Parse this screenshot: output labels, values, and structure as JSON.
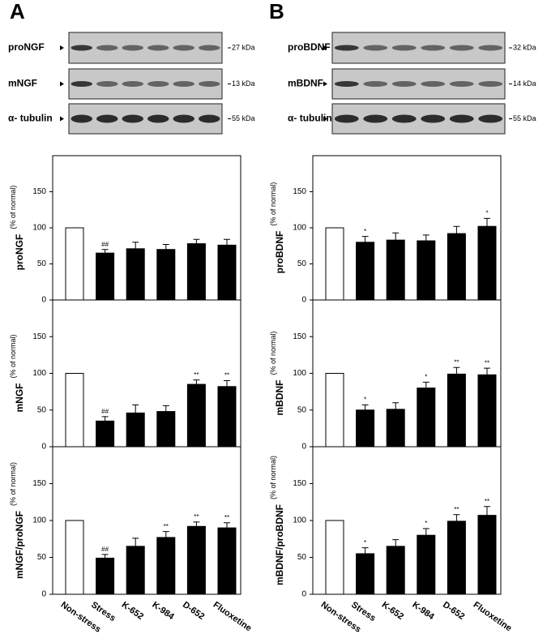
{
  "panels": [
    {
      "letter": "A",
      "blots": [
        {
          "label": "proNGF",
          "size": "27 kDa"
        },
        {
          "label": "mNGF",
          "size": "13 kDa"
        },
        {
          "label": "α- tubulin",
          "size": "55 kDa"
        }
      ]
    },
    {
      "letter": "B",
      "blots": [
        {
          "label": "proBDNF",
          "size": "32 kDa"
        },
        {
          "label": "mBDNF",
          "size": "14 kDa"
        },
        {
          "label": "α- tubulin",
          "size": "55 kDa"
        }
      ]
    }
  ],
  "chart_data": [
    {
      "type": "bar",
      "ylabel": "proNGF",
      "yunit": "(% of normal)",
      "values": [
        100,
        65,
        71,
        70,
        78,
        76
      ],
      "errors": [
        0,
        5,
        9,
        7,
        6,
        8
      ],
      "annotations": [
        null,
        "##",
        null,
        null,
        null,
        null
      ],
      "colors": [
        "#ffffff",
        "#000000",
        "#000000",
        "#000000",
        "#000000",
        "#000000"
      ],
      "ylim": [
        0,
        200
      ],
      "yticks": [
        0,
        50,
        100,
        150
      ]
    },
    {
      "type": "bar",
      "ylabel": "mNGF",
      "yunit": "(% of normal)",
      "values": [
        100,
        35,
        46,
        48,
        85,
        82
      ],
      "errors": [
        0,
        6,
        11,
        8,
        6,
        8
      ],
      "annotations": [
        null,
        "##",
        null,
        null,
        "**",
        "**"
      ],
      "colors": [
        "#ffffff",
        "#000000",
        "#000000",
        "#000000",
        "#000000",
        "#000000"
      ],
      "ylim": [
        0,
        200
      ],
      "yticks": [
        0,
        50,
        100,
        150
      ]
    },
    {
      "type": "bar",
      "ylabel": "mNGF/proNGF",
      "yunit": "(% of normal)",
      "categories": [
        "Non-stress",
        "Stress",
        "K-652",
        "K-984",
        "D-652",
        "Fluoxetine"
      ],
      "values": [
        100,
        49,
        65,
        77,
        92,
        90
      ],
      "errors": [
        0,
        5,
        11,
        8,
        6,
        7
      ],
      "annotations": [
        null,
        "##",
        null,
        "**",
        "**",
        "**"
      ],
      "colors": [
        "#ffffff",
        "#000000",
        "#000000",
        "#000000",
        "#000000",
        "#000000"
      ],
      "ylim": [
        0,
        200
      ],
      "yticks": [
        0,
        50,
        100,
        150
      ]
    },
    {
      "type": "bar",
      "ylabel": "proBDNF",
      "yunit": "(% of normal)",
      "values": [
        100,
        80,
        83,
        82,
        92,
        102
      ],
      "errors": [
        0,
        8,
        10,
        8,
        10,
        11
      ],
      "annotations": [
        null,
        "*",
        null,
        null,
        null,
        "*"
      ],
      "colors": [
        "#ffffff",
        "#000000",
        "#000000",
        "#000000",
        "#000000",
        "#000000"
      ],
      "ylim": [
        0,
        200
      ],
      "yticks": [
        0,
        50,
        100,
        150
      ]
    },
    {
      "type": "bar",
      "ylabel": "mBDNF",
      "yunit": "(% of normal)",
      "values": [
        100,
        50,
        51,
        80,
        99,
        98
      ],
      "errors": [
        0,
        7,
        9,
        8,
        9,
        9
      ],
      "annotations": [
        null,
        "*",
        null,
        "*",
        "**",
        "**"
      ],
      "colors": [
        "#ffffff",
        "#000000",
        "#000000",
        "#000000",
        "#000000",
        "#000000"
      ],
      "ylim": [
        0,
        200
      ],
      "yticks": [
        0,
        50,
        100,
        150
      ]
    },
    {
      "type": "bar",
      "ylabel": "mBDNF/proBDNF",
      "yunit": "(% of normal)",
      "categories": [
        "Non-stress",
        "Stress",
        "K-652",
        "K-984",
        "D-652",
        "Fluoxetine"
      ],
      "values": [
        100,
        55,
        65,
        80,
        99,
        107
      ],
      "errors": [
        0,
        8,
        9,
        9,
        9,
        12
      ],
      "annotations": [
        null,
        "*",
        null,
        "*",
        "**",
        "**"
      ],
      "colors": [
        "#ffffff",
        "#000000",
        "#000000",
        "#000000",
        "#000000",
        "#000000"
      ],
      "ylim": [
        0,
        200
      ],
      "yticks": [
        0,
        50,
        100,
        150
      ]
    }
  ]
}
